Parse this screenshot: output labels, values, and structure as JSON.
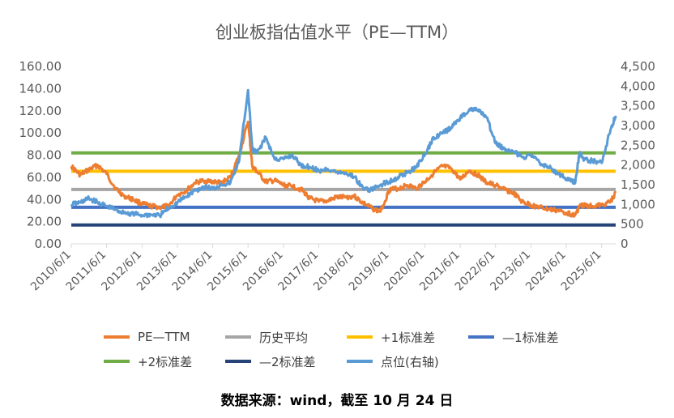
{
  "chart_data": {
    "type": "line",
    "title": "创业板指估值水平（PE—TTM）",
    "y_left": {
      "ticks": [
        "0.00",
        "20.00",
        "40.00",
        "60.00",
        "80.00",
        "100.00",
        "120.00",
        "140.00",
        "160.00"
      ],
      "range": [
        0,
        160
      ]
    },
    "y_right": {
      "ticks": [
        "0",
        "500",
        "1,000",
        "1,500",
        "2,000",
        "2,500",
        "3,000",
        "3,500",
        "4,000",
        "4,500"
      ],
      "range": [
        0,
        4500
      ]
    },
    "x_ticks": [
      "2010/6/1",
      "2011/6/1",
      "2012/6/1",
      "2013/6/1",
      "2014/6/1",
      "2015/6/1",
      "2016/6/1",
      "2017/6/1",
      "2018/6/1",
      "2019/6/1",
      "2020/6/1",
      "2021/6/1",
      "2022/6/1",
      "2023/6/1",
      "2024/6/1",
      "2025/6/1"
    ],
    "x_range": [
      "2010/6/1",
      "2025/10/24"
    ],
    "colors": {
      "pe": "#ED7D31",
      "hist_avg": "#A5A5A5",
      "plus1": "#FFC000",
      "minus1": "#4472C4",
      "plus2": "#70AD47",
      "minus2": "#264478",
      "index": "#5B9BD5"
    },
    "reference_lines": {
      "hist_avg": 49,
      "plus1": 65.5,
      "minus1": 33,
      "plus2": 82,
      "minus2": 17
    },
    "series": [
      {
        "name": "PE—TTM",
        "axis": "left",
        "x": [
          "2010/6/1",
          "2010/9/1",
          "2010/12/1",
          "2011/3/1",
          "2011/6/1",
          "2011/9/1",
          "2011/12/1",
          "2012/3/1",
          "2012/6/1",
          "2012/9/1",
          "2012/12/1",
          "2013/3/1",
          "2013/6/1",
          "2013/9/1",
          "2013/12/1",
          "2014/3/1",
          "2014/6/1",
          "2014/9/1",
          "2014/12/1",
          "2015/3/1",
          "2015/6/1",
          "2015/7/15",
          "2015/9/1",
          "2015/12/1",
          "2016/3/1",
          "2016/6/1",
          "2016/9/1",
          "2016/12/1",
          "2017/3/1",
          "2017/6/1",
          "2017/9/1",
          "2017/12/1",
          "2018/3/1",
          "2018/6/1",
          "2018/9/1",
          "2018/12/1",
          "2019/3/1",
          "2019/6/1",
          "2019/9/1",
          "2019/12/1",
          "2020/3/1",
          "2020/6/1",
          "2020/9/1",
          "2020/12/1",
          "2021/3/1",
          "2021/6/1",
          "2021/9/1",
          "2021/12/1",
          "2022/3/1",
          "2022/6/1",
          "2022/9/1",
          "2022/12/1",
          "2023/3/1",
          "2023/6/1",
          "2023/9/1",
          "2023/12/1",
          "2024/3/1",
          "2024/6/1",
          "2024/9/1",
          "2024/10/15",
          "2024/12/1",
          "2025/3/1",
          "2025/6/1",
          "2025/9/1",
          "2025/10/24"
        ],
        "values": [
          70,
          62,
          67,
          71,
          63,
          50,
          43,
          40,
          36,
          34,
          33,
          34,
          44,
          48,
          55,
          57,
          56,
          55,
          60,
          80,
          110,
          70,
          65,
          56,
          57,
          53,
          52,
          49,
          41,
          38,
          39,
          42,
          42,
          43,
          37,
          32,
          29,
          49,
          50,
          53,
          50,
          56,
          64,
          70,
          68,
          58,
          66,
          62,
          55,
          53,
          49,
          46,
          38,
          35,
          33,
          31,
          30,
          28,
          26,
          34,
          35,
          34,
          35,
          38,
          46
        ]
      },
      {
        "name": "点位(右轴)",
        "axis": "right",
        "x": [
          "2010/6/1",
          "2010/9/1",
          "2010/12/1",
          "2011/3/1",
          "2011/6/1",
          "2011/9/1",
          "2011/12/1",
          "2012/3/1",
          "2012/6/1",
          "2012/9/1",
          "2012/12/1",
          "2013/3/1",
          "2013/6/1",
          "2013/9/1",
          "2013/12/1",
          "2014/3/1",
          "2014/6/1",
          "2014/9/1",
          "2014/12/1",
          "2015/3/1",
          "2015/6/1",
          "2015/7/15",
          "2015/9/1",
          "2015/12/1",
          "2016/3/1",
          "2016/6/1",
          "2016/9/1",
          "2016/12/1",
          "2017/3/1",
          "2017/6/1",
          "2017/9/1",
          "2017/12/1",
          "2018/3/1",
          "2018/6/1",
          "2018/9/1",
          "2018/12/1",
          "2019/3/1",
          "2019/6/1",
          "2019/9/1",
          "2019/12/1",
          "2020/3/1",
          "2020/6/1",
          "2020/9/1",
          "2020/12/1",
          "2021/3/1",
          "2021/6/1",
          "2021/9/1",
          "2021/12/1",
          "2022/3/1",
          "2022/6/1",
          "2022/9/1",
          "2022/12/1",
          "2023/3/1",
          "2023/6/1",
          "2023/9/1",
          "2023/12/1",
          "2024/3/1",
          "2024/6/1",
          "2024/9/1",
          "2024/10/15",
          "2024/12/1",
          "2025/3/1",
          "2025/6/1",
          "2025/9/1",
          "2025/10/24"
        ],
        "values": [
          1000,
          1050,
          1150,
          1050,
          950,
          870,
          780,
          760,
          730,
          740,
          720,
          900,
          1050,
          1200,
          1350,
          1450,
          1400,
          1500,
          1550,
          2100,
          3900,
          2400,
          2300,
          2700,
          2150,
          2150,
          2250,
          1980,
          1950,
          1850,
          1900,
          1820,
          1800,
          1700,
          1420,
          1360,
          1500,
          1580,
          1700,
          1800,
          1950,
          2250,
          2700,
          2800,
          2950,
          3200,
          3400,
          3400,
          3200,
          2550,
          2400,
          2350,
          2200,
          2250,
          2050,
          1950,
          1800,
          1650,
          1550,
          2300,
          2150,
          2100,
          2050,
          2900,
          3250
        ]
      }
    ]
  },
  "legend": {
    "pe": "PE—TTM",
    "hist_avg": "历史平均",
    "plus1": "+1标准差",
    "minus1": "—1标准差",
    "plus2": "+2标准差",
    "minus2": "—2标准差",
    "index": "点位(右轴)"
  },
  "source_note": "数据来源：wind，截至 10 月 24 日"
}
